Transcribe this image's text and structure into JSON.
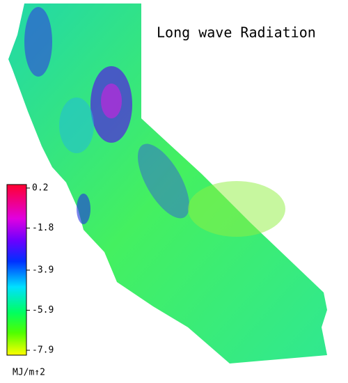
{
  "title": "Long wave Radiation",
  "colorbar": {
    "ticks": [
      0.2,
      -1.8,
      -3.9,
      -5.9,
      -7.9
    ],
    "unit": "MJ/m↑2"
  }
}
